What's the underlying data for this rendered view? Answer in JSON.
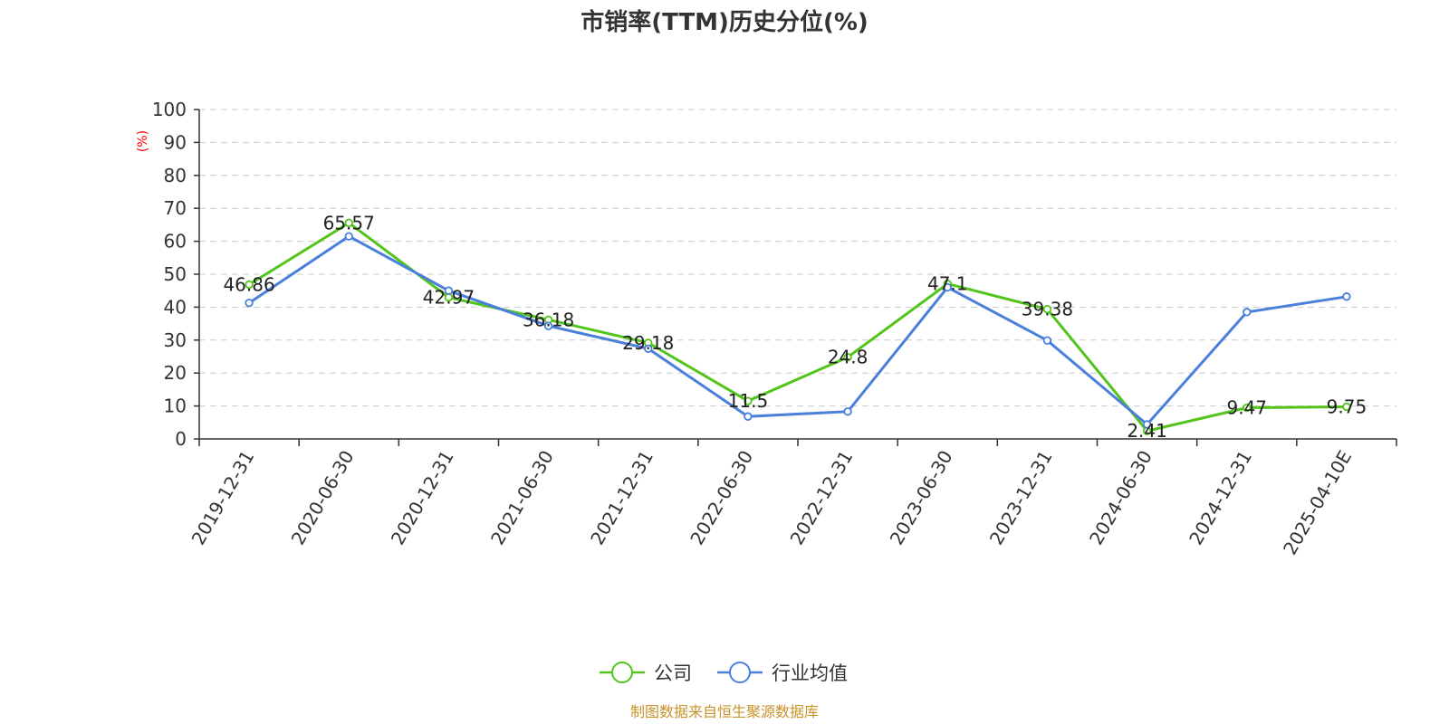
{
  "chart_data": {
    "type": "line",
    "title": "市销率(TTM)历史分位(%)",
    "ylabel": "(%)",
    "ylim": [
      0,
      100
    ],
    "yticks": [
      0,
      10,
      20,
      30,
      40,
      50,
      60,
      70,
      80,
      90,
      100
    ],
    "grid": true,
    "legend_placement": "bottom-center",
    "categories": [
      "2019-12-31",
      "2020-06-30",
      "2020-12-31",
      "2021-06-30",
      "2021-12-31",
      "2022-06-30",
      "2022-12-31",
      "2023-06-30",
      "2023-12-31",
      "2024-06-30",
      "2024-12-31",
      "2025-04-10E"
    ],
    "series": [
      {
        "name": "公司",
        "color": "#52c41a",
        "show_labels": true,
        "values": [
          46.86,
          65.57,
          42.97,
          36.18,
          29.18,
          11.5,
          24.8,
          47.1,
          39.38,
          2.41,
          9.47,
          9.75
        ]
      },
      {
        "name": "行业均值",
        "color": "#4a7fdc",
        "show_labels": false,
        "values": [
          41.3,
          61.5,
          45.0,
          34.3,
          27.4,
          6.8,
          8.3,
          46.0,
          29.9,
          4.4,
          38.5,
          43.2
        ]
      }
    ],
    "colors": {
      "axis": "#333333",
      "grid": "#cccccc",
      "unit_label": "#ff0000"
    }
  },
  "source": {
    "text": "制图数据来自恒生聚源数据库",
    "color": "#c8922a"
  }
}
